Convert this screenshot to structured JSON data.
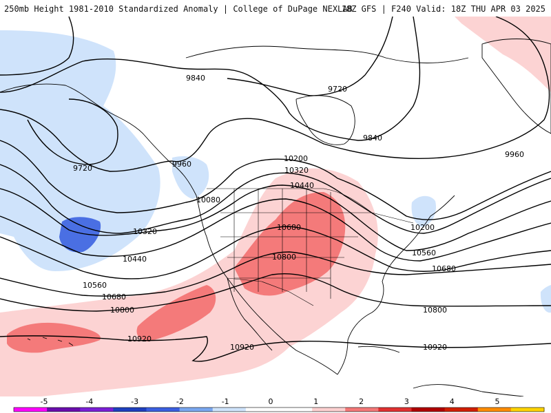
{
  "header": {
    "title_left": "250mb Height 1981-2010 Standardized Anomaly | College of DuPage NEXLAB",
    "title_right": "18Z GFS | F240 Valid: 18Z THU APR 03 2025"
  },
  "contour_labels": [
    "9720",
    "9840",
    "9720",
    "9840",
    "9960",
    "9960",
    "10080",
    "10200",
    "10320",
    "10320",
    "10440",
    "10440",
    "10560",
    "10560",
    "10680",
    "10680",
    "10680",
    "10800",
    "10800",
    "10800",
    "10920",
    "10920",
    "10920",
    "10200"
  ],
  "legend": {
    "ticks": [
      "-5",
      "-4",
      "-3",
      "-2",
      "-1",
      "0",
      "1",
      "2",
      "3",
      "4",
      "5"
    ],
    "colors": [
      "#ff00ff",
      "#6a0dad",
      "#7b1fd6",
      "#1f3fbf",
      "#3b5fe0",
      "#7aa7f0",
      "#cfe3fb",
      "#ffffff",
      "#ffffff",
      "#fcd0d0",
      "#f47878",
      "#e03030",
      "#b00000",
      "#d11f00",
      "#ff8c00",
      "#ffd400"
    ]
  },
  "colors": {
    "anomaly_pos_light": "#fcd3d3",
    "anomaly_pos_mid": "#f47a7a",
    "anomaly_neg_light": "#cfe3fb",
    "anomaly_neg_mid": "#4a6fe3",
    "contour": "#000000",
    "coast": "#000000"
  }
}
